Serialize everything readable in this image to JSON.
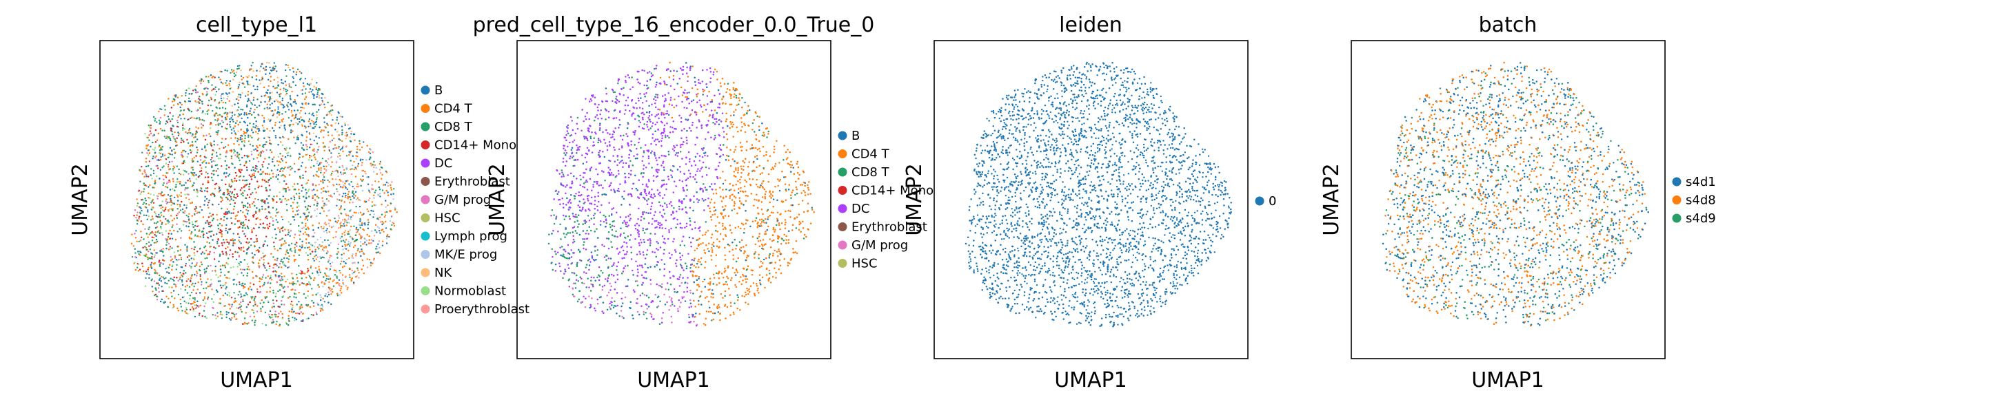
{
  "chart_data": [
    {
      "type": "scatter",
      "title": "cell_type_l1",
      "xlabel": "UMAP1",
      "ylabel": "UMAP2",
      "legend_position": "right",
      "grid": false,
      "legend": [
        {
          "label": "B",
          "color": "#1f77b4"
        },
        {
          "label": "CD4 T",
          "color": "#ff7f0e"
        },
        {
          "label": "CD8 T",
          "color": "#279e68"
        },
        {
          "label": "CD14+ Mono",
          "color": "#d62728"
        },
        {
          "label": "DC",
          "color": "#aa40fc"
        },
        {
          "label": "Erythroblast",
          "color": "#8c564b"
        },
        {
          "label": "G/M prog",
          "color": "#e377c2"
        },
        {
          "label": "HSC",
          "color": "#b5bd61"
        },
        {
          "label": "Lymph prog",
          "color": "#17becf"
        },
        {
          "label": "MK/E prog",
          "color": "#aec7e8"
        },
        {
          "label": "NK",
          "color": "#ffbb78"
        },
        {
          "label": "Normoblast",
          "color": "#98df8a"
        },
        {
          "label": "Proerythroblast",
          "color": "#ff9896"
        }
      ]
    },
    {
      "type": "scatter",
      "title": "pred_cell_type_16_encoder_0.0_True_0",
      "xlabel": "UMAP1",
      "ylabel": "UMAP2",
      "legend_position": "right",
      "grid": false,
      "legend": [
        {
          "label": "B",
          "color": "#1f77b4"
        },
        {
          "label": "CD4 T",
          "color": "#ff7f0e"
        },
        {
          "label": "CD8 T",
          "color": "#279e68"
        },
        {
          "label": "CD14+ Mono",
          "color": "#d62728"
        },
        {
          "label": "DC",
          "color": "#aa40fc"
        },
        {
          "label": "Erythroblast",
          "color": "#8c564b"
        },
        {
          "label": "G/M prog",
          "color": "#e377c2"
        },
        {
          "label": "HSC",
          "color": "#b5bd61"
        }
      ]
    },
    {
      "type": "scatter",
      "title": "leiden",
      "xlabel": "UMAP1",
      "ylabel": "UMAP2",
      "legend_position": "right",
      "grid": false,
      "legend": [
        {
          "label": "0",
          "color": "#1f77b4"
        }
      ]
    },
    {
      "type": "scatter",
      "title": "batch",
      "xlabel": "UMAP1",
      "ylabel": "UMAP2",
      "legend_position": "right",
      "grid": false,
      "legend": [
        {
          "label": "s4d1",
          "color": "#1f77b4"
        },
        {
          "label": "s4d8",
          "color": "#ff7f0e"
        },
        {
          "label": "s4d9",
          "color": "#279e68"
        }
      ]
    }
  ]
}
